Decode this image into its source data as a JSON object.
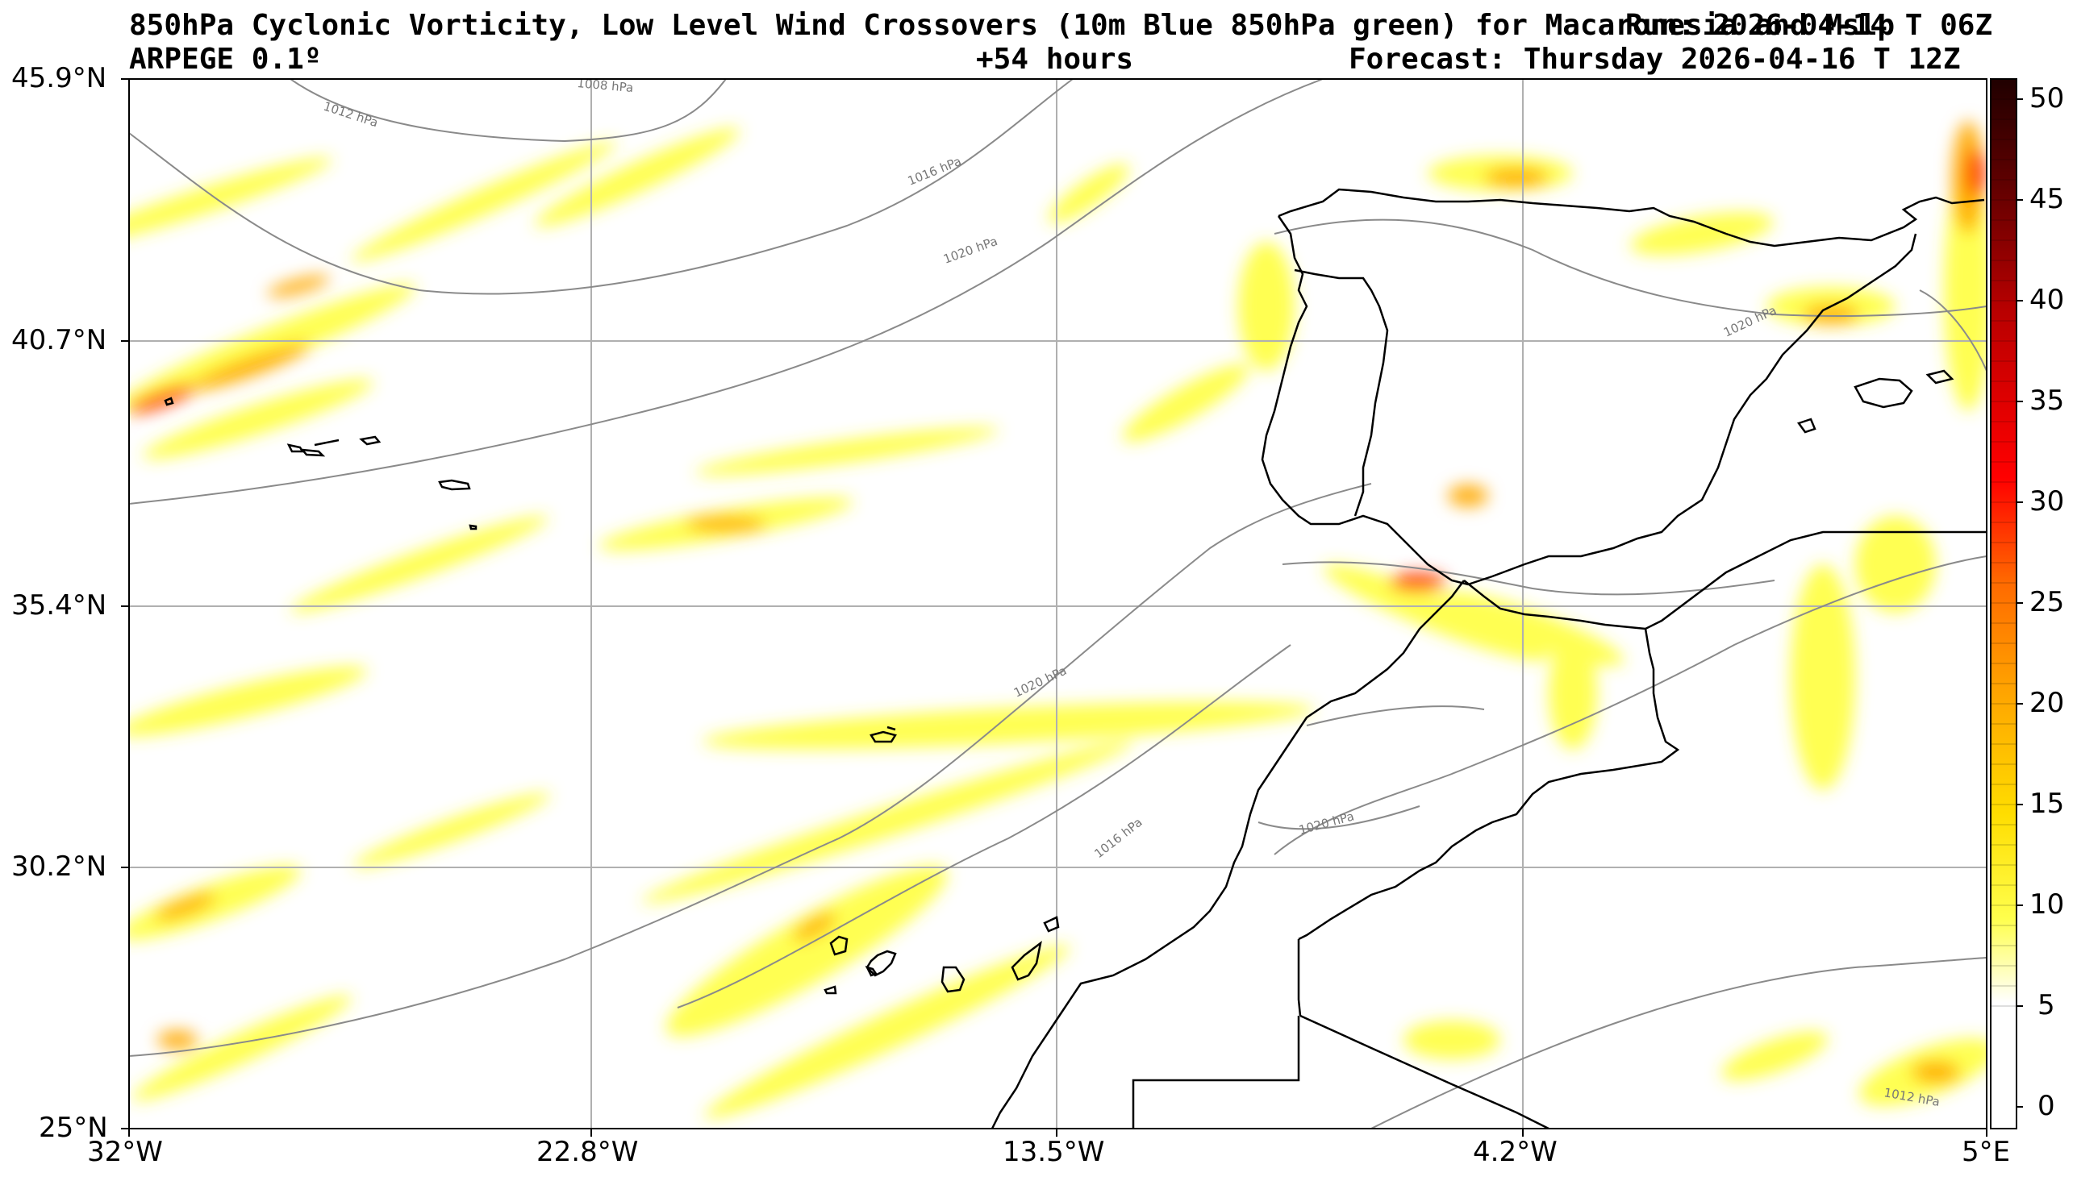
{
  "header": {
    "title_line": "850hPa Cyclonic Vorticity, Low Level Wind Crossovers (10m Blue 850hPa green) for Macaronesia and Mslp",
    "run_label": "Run: 2026-04-14 T 06Z",
    "model_label": "ARPEGE 0.1º",
    "lead_label": "+54 hours",
    "forecast_label": "Forecast: Thursday 2026-04-16 T 12Z"
  },
  "map": {
    "latitude_labels": [
      "45.9°N",
      "40.7°N",
      "35.4°N",
      "30.2°N",
      "25°N"
    ],
    "longitude_labels": [
      "32°W",
      "22.8°W",
      "13.5°W",
      "4.2°W",
      "5°E"
    ],
    "isobar_labels": [
      "1008 hPa",
      "1012 hPa",
      "1016 hPa",
      "1020 hPa",
      "1020 hPa",
      "1020 hPa",
      "1016 hPa",
      "1020 hPa",
      "1012 hPa"
    ],
    "colors": {
      "yellow": "#ffff00",
      "orange": "#ffa500",
      "red": "#ff0000",
      "dark_red": "#7a0000",
      "coastline": "#000000",
      "isobar": "#8a8a8a",
      "grid": "#b0b0b0"
    }
  },
  "colorbar": {
    "ticks": [
      "50",
      "45",
      "40",
      "35",
      "30",
      "25",
      "20",
      "15",
      "10",
      "5",
      "0"
    ],
    "range": [
      0,
      51
    ]
  }
}
